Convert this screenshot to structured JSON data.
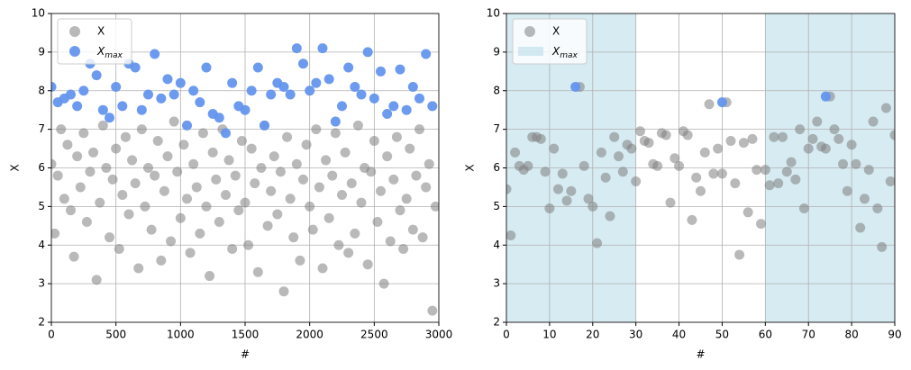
{
  "chart_data": [
    {
      "type": "scatter",
      "xlabel": "#",
      "ylabel": "X",
      "xlim": [
        0,
        3000
      ],
      "xticks": [
        0,
        500,
        1000,
        1500,
        2000,
        2500,
        3000
      ],
      "ylim": [
        2,
        10
      ],
      "yticks": [
        2,
        3,
        4,
        5,
        6,
        7,
        8,
        9,
        10
      ],
      "grid": true,
      "legend": "upper left",
      "series": [
        {
          "name": "X",
          "color": "#808080",
          "x": [
            0,
            25,
            50,
            75,
            100,
            125,
            150,
            175,
            200,
            225,
            250,
            275,
            300,
            325,
            350,
            375,
            400,
            425,
            450,
            475,
            500,
            525,
            550,
            575,
            600,
            625,
            650,
            675,
            700,
            725,
            750,
            775,
            800,
            825,
            850,
            875,
            900,
            925,
            950,
            975,
            1000,
            1025,
            1050,
            1075,
            1100,
            1125,
            1150,
            1175,
            1200,
            1225,
            1250,
            1275,
            1300,
            1325,
            1350,
            1375,
            1400,
            1425,
            1450,
            1475,
            1500,
            1525,
            1550,
            1575,
            1600,
            1625,
            1650,
            1675,
            1700,
            1725,
            1750,
            1775,
            1800,
            1825,
            1850,
            1875,
            1900,
            1925,
            1950,
            1975,
            2000,
            2025,
            2050,
            2075,
            2100,
            2125,
            2150,
            2175,
            2200,
            2225,
            2250,
            2275,
            2300,
            2325,
            2350,
            2375,
            2400,
            2425,
            2450,
            2475,
            2500,
            2525,
            2550,
            2575,
            2600,
            2625,
            2650,
            2675,
            2700,
            2725,
            2750,
            2775,
            2800,
            2825,
            2850,
            2875,
            2900,
            2925,
            2950,
            2975
          ],
          "values": [
            6.1,
            4.3,
            5.8,
            7.0,
            5.2,
            6.6,
            4.9,
            3.7,
            6.3,
            5.5,
            6.9,
            4.6,
            5.9,
            6.4,
            3.1,
            5.1,
            7.1,
            6.0,
            4.2,
            5.7,
            6.5,
            3.9,
            5.3,
            6.8,
            4.8,
            6.2,
            5.6,
            3.4,
            7.0,
            5.0,
            6.0,
            4.4,
            5.8,
            6.7,
            3.6,
            5.4,
            6.3,
            4.1,
            7.2,
            5.9,
            4.7,
            6.6,
            5.2,
            3.8,
            6.1,
            5.5,
            4.3,
            6.9,
            5.0,
            3.2,
            6.4,
            5.7,
            4.6,
            7.0,
            5.3,
            6.2,
            3.9,
            5.8,
            4.9,
            6.7,
            5.1,
            4.0,
            6.5,
            5.6,
            3.3,
            6.0,
            7.1,
            4.5,
            5.4,
            6.3,
            4.8,
            5.9,
            2.8,
            6.8,
            5.2,
            4.2,
            6.1,
            3.6,
            5.7,
            6.6,
            5.0,
            4.4,
            7.0,
            5.5,
            3.4,
            6.2,
            4.7,
            5.8,
            6.9,
            4.0,
            5.3,
            6.4,
            3.8,
            5.6,
            4.3,
            7.1,
            5.1,
            6.0,
            3.5,
            5.9,
            6.7,
            4.6,
            5.4,
            3.0,
            6.3,
            4.1,
            5.7,
            6.8,
            4.9,
            3.9,
            5.2,
            6.5,
            4.4,
            5.8,
            7.0,
            4.2,
            5.5,
            6.1,
            2.3,
            5.0
          ]
        },
        {
          "name": "Xmax",
          "color": "#6495ed",
          "x": [
            0,
            50,
            100,
            150,
            200,
            250,
            300,
            350,
            400,
            450,
            500,
            550,
            600,
            650,
            700,
            750,
            800,
            850,
            900,
            950,
            1000,
            1050,
            1100,
            1150,
            1200,
            1250,
            1300,
            1350,
            1400,
            1450,
            1500,
            1550,
            1600,
            1650,
            1700,
            1750,
            1800,
            1850,
            1900,
            1950,
            2000,
            2050,
            2100,
            2150,
            2200,
            2250,
            2300,
            2350,
            2400,
            2450,
            2500,
            2550,
            2600,
            2650,
            2700,
            2750,
            2800,
            2850,
            2900,
            2950
          ],
          "values": [
            8.1,
            7.7,
            7.8,
            7.9,
            7.6,
            8.0,
            8.7,
            8.4,
            7.5,
            7.3,
            8.1,
            7.6,
            8.7,
            8.6,
            7.5,
            7.9,
            8.95,
            7.8,
            8.3,
            7.9,
            8.2,
            7.1,
            8.0,
            7.7,
            8.6,
            7.4,
            7.3,
            6.9,
            8.2,
            7.6,
            7.5,
            8.0,
            8.6,
            7.1,
            7.9,
            8.2,
            8.1,
            7.9,
            9.1,
            8.7,
            8.0,
            8.2,
            9.1,
            8.3,
            7.2,
            7.6,
            8.6,
            8.1,
            7.9,
            9.0,
            7.8,
            8.5,
            7.4,
            7.6,
            8.55,
            7.5,
            8.1,
            7.8,
            8.95,
            7.6
          ]
        }
      ]
    },
    {
      "type": "scatter",
      "xlabel": "#",
      "ylabel": "X",
      "xlim": [
        0,
        90
      ],
      "xticks": [
        0,
        10,
        20,
        30,
        40,
        50,
        60,
        70,
        80,
        90
      ],
      "ylim": [
        2,
        10
      ],
      "yticks": [
        2,
        3,
        4,
        5,
        6,
        7,
        8,
        9,
        10
      ],
      "grid": true,
      "legend": "upper left",
      "series": [
        {
          "name": "X",
          "color": "#808080",
          "x": [
            0,
            1,
            2,
            3,
            4,
            5,
            6,
            7,
            8,
            9,
            10,
            11,
            12,
            13,
            14,
            15,
            17,
            18,
            19,
            20,
            21,
            22,
            23,
            24,
            25,
            26,
            27,
            28,
            29,
            30,
            31,
            32,
            33,
            34,
            35,
            36,
            37,
            38,
            39,
            40,
            41,
            42,
            43,
            44,
            45,
            46,
            47,
            48,
            49,
            50,
            51,
            52,
            53,
            54,
            55,
            56,
            57,
            58,
            59,
            60,
            61,
            62,
            63,
            64,
            65,
            66,
            67,
            68,
            69,
            70,
            71,
            72,
            73,
            74,
            75,
            76,
            77,
            78,
            79,
            80,
            81,
            82,
            83,
            84,
            85,
            86,
            87,
            88,
            89,
            90
          ],
          "values": [
            5.45,
            4.25,
            6.4,
            6.05,
            5.95,
            6.05,
            6.8,
            6.8,
            6.75,
            5.9,
            4.95,
            6.5,
            5.45,
            5.85,
            5.15,
            5.4,
            8.1,
            6.05,
            5.2,
            5.0,
            4.05,
            6.4,
            5.75,
            4.75,
            6.8,
            6.3,
            5.9,
            6.6,
            6.5,
            5.65,
            6.95,
            6.7,
            6.65,
            6.1,
            6.05,
            6.9,
            6.85,
            5.1,
            6.25,
            6.05,
            6.95,
            6.85,
            4.65,
            5.75,
            5.4,
            6.4,
            7.65,
            5.85,
            6.5,
            5.85,
            7.7,
            6.7,
            5.6,
            3.75,
            6.65,
            4.85,
            6.75,
            5.95,
            4.55,
            5.95,
            5.55,
            6.8,
            5.6,
            6.8,
            5.9,
            6.15,
            5.7,
            7.0,
            4.95,
            6.5,
            6.75,
            7.2,
            6.55,
            6.5,
            7.85,
            7.0,
            6.75,
            6.1,
            5.4,
            6.6,
            6.1,
            4.45,
            5.2,
            5.95,
            7.2,
            4.95,
            3.95,
            7.55,
            5.65,
            6.85
          ]
        },
        {
          "color": "#6495ed",
          "x": [
            16,
            50,
            74
          ],
          "values": [
            8.1,
            7.7,
            7.85
          ]
        }
      ],
      "spans": {
        "name": "Xmax",
        "color": "#add8e6",
        "ranges": [
          [
            0,
            30
          ],
          [
            60,
            90
          ]
        ]
      }
    }
  ]
}
